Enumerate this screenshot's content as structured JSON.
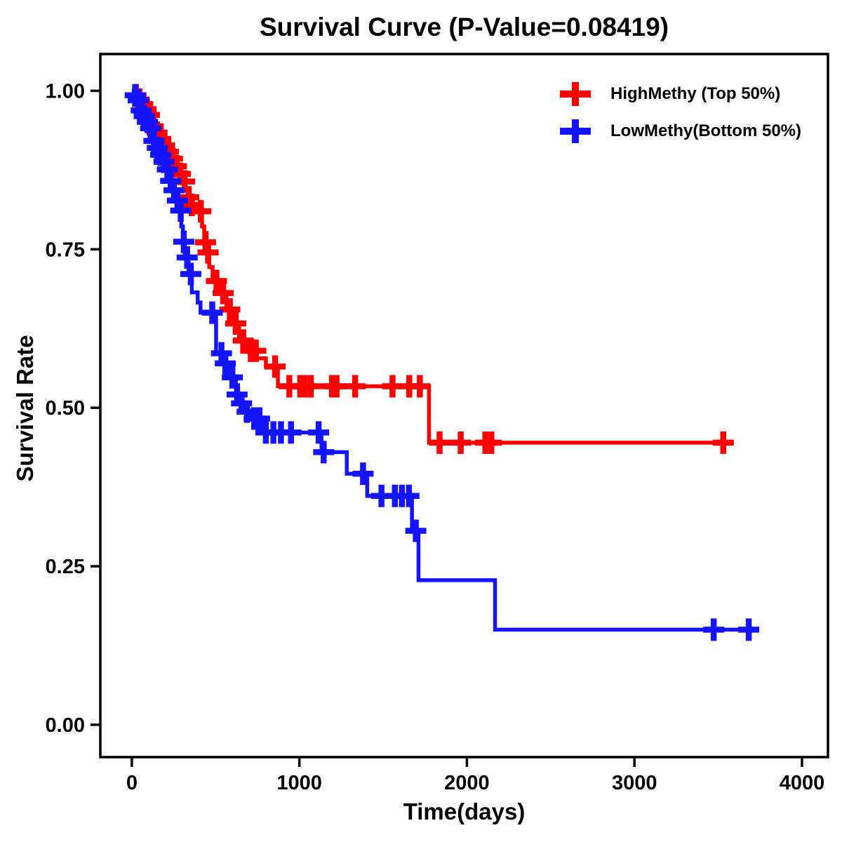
{
  "chart_data": {
    "type": "line",
    "subtype": "kaplan-meier-step-curves",
    "title": "Survival Curve (P-Value=0.08419)",
    "p_value": "0.08419",
    "xlabel": "Time(days)",
    "ylabel": "Survival Rate",
    "xlim": [
      -188,
      4155
    ],
    "ylim": [
      -0.051,
      1.058
    ],
    "x_ticks": [
      0,
      1000,
      2000,
      3000,
      4000
    ],
    "x_tick_labels": [
      "0",
      "1000",
      "2000",
      "3000",
      "4000"
    ],
    "y_ticks": [
      0,
      0.25,
      0.5,
      0.75,
      1.0
    ],
    "y_tick_labels": [
      "0.00",
      "0.25",
      "0.50",
      "0.75",
      "1.00"
    ],
    "grid": false,
    "legend_position": "top-right-inside",
    "axis_color": "#000000",
    "series": [
      {
        "name": "HighMethy (Top 50%)",
        "color": "#FF0000",
        "marker": "plus-censor",
        "end_time": 3550,
        "steps": [
          [
            0,
            1.0
          ],
          [
            18,
            0.993
          ],
          [
            36,
            0.986
          ],
          [
            54,
            0.979
          ],
          [
            72,
            0.971
          ],
          [
            90,
            0.962
          ],
          [
            108,
            0.953
          ],
          [
            126,
            0.944
          ],
          [
            145,
            0.934
          ],
          [
            164,
            0.924
          ],
          [
            183,
            0.914
          ],
          [
            203,
            0.904
          ],
          [
            225,
            0.893
          ],
          [
            248,
            0.881
          ],
          [
            271,
            0.869
          ],
          [
            295,
            0.857
          ],
          [
            318,
            0.845
          ],
          [
            340,
            0.832
          ],
          [
            358,
            0.82
          ],
          [
            380,
            0.81
          ],
          [
            419,
            0.786
          ],
          [
            432,
            0.761
          ],
          [
            448,
            0.745
          ],
          [
            462,
            0.722
          ],
          [
            482,
            0.7
          ],
          [
            532,
            0.681
          ],
          [
            565,
            0.655
          ],
          [
            600,
            0.633
          ],
          [
            640,
            0.606
          ],
          [
            690,
            0.59
          ],
          [
            745,
            0.578
          ],
          [
            800,
            0.565
          ],
          [
            872,
            0.534
          ],
          [
            1774,
            0.445
          ]
        ],
        "censor_times": [
          25,
          45,
          65,
          85,
          105,
          128,
          150,
          172,
          195,
          218,
          242,
          266,
          290,
          315,
          340,
          358,
          412,
          440,
          455,
          505,
          545,
          585,
          620,
          665,
          710,
          740,
          855,
          940,
          1005,
          1032,
          1068,
          1195,
          1222,
          1333,
          1556,
          1656,
          1719,
          1837,
          1963,
          2110,
          2146,
          3530
        ]
      },
      {
        "name": "LowMethy(Bottom 50%)",
        "color": "#1414FF",
        "marker": "plus-censor",
        "end_time": 3728,
        "steps": [
          [
            0,
            1.0
          ],
          [
            14,
            0.993
          ],
          [
            28,
            0.985
          ],
          [
            42,
            0.977
          ],
          [
            56,
            0.969
          ],
          [
            70,
            0.96
          ],
          [
            85,
            0.951
          ],
          [
            100,
            0.941
          ],
          [
            116,
            0.931
          ],
          [
            132,
            0.921
          ],
          [
            149,
            0.91
          ],
          [
            166,
            0.899
          ],
          [
            184,
            0.888
          ],
          [
            202,
            0.876
          ],
          [
            220,
            0.858
          ],
          [
            238,
            0.843
          ],
          [
            256,
            0.827
          ],
          [
            274,
            0.811
          ],
          [
            295,
            0.786
          ],
          [
            305,
            0.762
          ],
          [
            315,
            0.737
          ],
          [
            338,
            0.711
          ],
          [
            358,
            0.682
          ],
          [
            393,
            0.666
          ],
          [
            410,
            0.65
          ],
          [
            503,
            0.586
          ],
          [
            558,
            0.57
          ],
          [
            579,
            0.548
          ],
          [
            621,
            0.521
          ],
          [
            650,
            0.507
          ],
          [
            676,
            0.494
          ],
          [
            717,
            0.483
          ],
          [
            776,
            0.461
          ],
          [
            1132,
            0.43
          ],
          [
            1283,
            0.396
          ],
          [
            1405,
            0.361
          ],
          [
            1672,
            0.306
          ],
          [
            1711,
            0.228
          ],
          [
            2168,
            0.15
          ]
        ],
        "censor_times": [
          20,
          38,
          56,
          74,
          93,
          112,
          132,
          152,
          172,
          192,
          212,
          232,
          252,
          272,
          292,
          310,
          330,
          352,
          480,
          535,
          558,
          600,
          628,
          655,
          688,
          730,
          762,
          800,
          845,
          890,
          950,
          1115,
          1145,
          1380,
          1490,
          1570,
          1612,
          1654,
          1695,
          3473,
          3682
        ]
      }
    ]
  }
}
